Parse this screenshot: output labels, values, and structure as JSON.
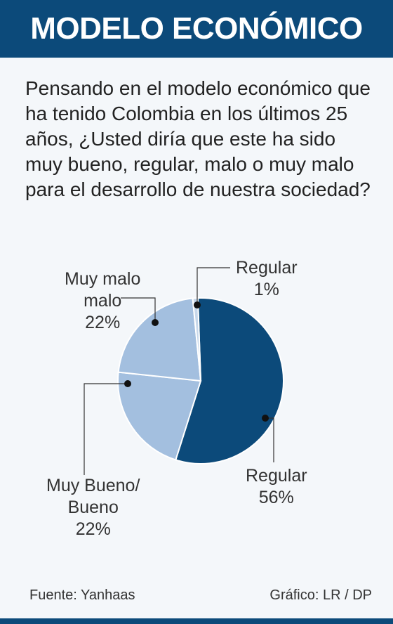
{
  "header": {
    "title": "MODELO ECONÓMICO"
  },
  "question": "Pensando en el modelo económico que ha tenido Colombia en los últimos 25 años, ¿Usted diría que este ha sido muy bueno, regular, malo o muy malo para el desarrollo de nuestra sociedad?",
  "chart_data": {
    "type": "pie",
    "slices": [
      {
        "label_lines": [
          "Regular"
        ],
        "pct_text": "56%",
        "value": 56,
        "color": "#0c4a7a"
      },
      {
        "label_lines": [
          "Muy Bueno/",
          "Bueno"
        ],
        "pct_text": "22%",
        "value": 22,
        "color": "#a3bfdf"
      },
      {
        "label_lines": [
          "Muy malo",
          "malo"
        ],
        "pct_text": "22%",
        "value": 22,
        "color": "#a3bfdf"
      },
      {
        "label_lines": [
          "Regular"
        ],
        "pct_text": "1%",
        "value": 1,
        "color": "#c6d7ea"
      }
    ]
  },
  "footer": {
    "source": "Fuente: Yanhaas",
    "credit": "Gráfico: LR / DP"
  }
}
